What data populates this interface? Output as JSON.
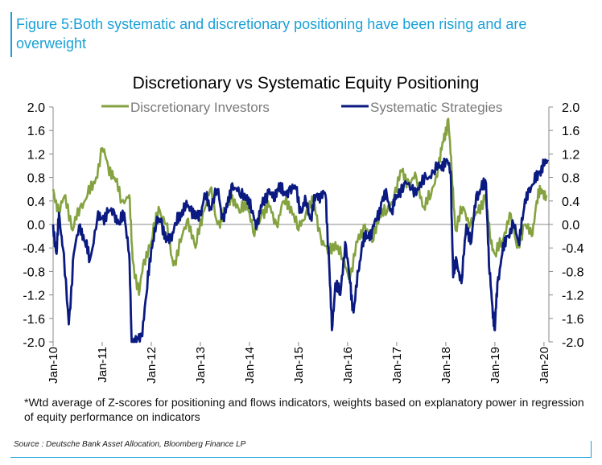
{
  "figure_title": "Figure 5:Both systematic and discretionary positioning have been rising and are overweight",
  "footnote": "*Wtd average of Z-scores for positioning and flows indicators, weights based on explanatory power in regression of equity performance on indicators",
  "source": "Source : Deutsche Bank Asset Allocation, Bloomberg Finance LP",
  "colors": {
    "accent": "#1aa0d8",
    "discretionary": "#84a340",
    "systematic": "#0a1a80"
  },
  "chart_data": {
    "type": "line",
    "title": "Discretionary  vs Systematic Equity Positioning",
    "xlabel": "",
    "ylabel": "",
    "ylim": [
      -2.0,
      2.0
    ],
    "yticks": [
      "2.0",
      "1.6",
      "1.2",
      "0.8",
      "0.4",
      "0.0",
      "-0.4",
      "-0.8",
      "-1.2",
      "-1.6",
      "-2.0"
    ],
    "right_yticks": [
      "2.0",
      "1.6",
      "1.2",
      "0.8",
      "0.4",
      "0.0",
      "-0.4",
      "-0.8",
      "-1.2",
      "-1.6",
      "-2.0"
    ],
    "x_tick_labels": [
      "Jan-10",
      "Jan-11",
      "Jan-12",
      "Jan-13",
      "Jan-14",
      "Jan-15",
      "Jan-16",
      "Jan-17",
      "Jan-18",
      "Jan-19",
      "Jan-20"
    ],
    "legend": [
      "Discretionary Investors",
      "Systematic Strategies"
    ],
    "legend_position": "top",
    "series": [
      {
        "name": "Discretionary Investors",
        "points": [
          [
            2010.0,
            0.6
          ],
          [
            2010.12,
            0.2
          ],
          [
            2010.25,
            0.5
          ],
          [
            2010.4,
            -0.1
          ],
          [
            2010.55,
            0.3
          ],
          [
            2010.7,
            0.5
          ],
          [
            2010.85,
            0.7
          ],
          [
            2011.0,
            1.3
          ],
          [
            2011.12,
            1.0
          ],
          [
            2011.25,
            0.8
          ],
          [
            2011.4,
            0.4
          ],
          [
            2011.55,
            0.5
          ],
          [
            2011.62,
            -0.6
          ],
          [
            2011.75,
            -1.2
          ],
          [
            2011.85,
            -0.6
          ],
          [
            2012.0,
            -0.3
          ],
          [
            2012.15,
            0.3
          ],
          [
            2012.3,
            0.0
          ],
          [
            2012.45,
            -0.7
          ],
          [
            2012.6,
            -0.3
          ],
          [
            2012.75,
            0.1
          ],
          [
            2012.9,
            -0.4
          ],
          [
            2013.05,
            0.2
          ],
          [
            2013.2,
            0.6
          ],
          [
            2013.35,
            0.0
          ],
          [
            2013.5,
            0.2
          ],
          [
            2013.65,
            0.5
          ],
          [
            2013.8,
            0.2
          ],
          [
            2013.95,
            0.4
          ],
          [
            2014.1,
            -0.2
          ],
          [
            2014.25,
            0.2
          ],
          [
            2014.4,
            0.3
          ],
          [
            2014.55,
            0.0
          ],
          [
            2014.7,
            0.4
          ],
          [
            2014.85,
            0.3
          ],
          [
            2015.0,
            -0.1
          ],
          [
            2015.15,
            0.2
          ],
          [
            2015.3,
            0.4
          ],
          [
            2015.45,
            -0.2
          ],
          [
            2015.6,
            -0.5
          ],
          [
            2015.75,
            -0.3
          ],
          [
            2015.9,
            -0.6
          ],
          [
            2016.05,
            -0.9
          ],
          [
            2016.2,
            -0.3
          ],
          [
            2016.35,
            0.0
          ],
          [
            2016.5,
            -0.3
          ],
          [
            2016.65,
            0.2
          ],
          [
            2016.8,
            0.2
          ],
          [
            2016.95,
            0.5
          ],
          [
            2017.1,
            0.9
          ],
          [
            2017.25,
            0.7
          ],
          [
            2017.4,
            0.8
          ],
          [
            2017.55,
            0.3
          ],
          [
            2017.7,
            0.5
          ],
          [
            2017.85,
            1.0
          ],
          [
            2017.95,
            1.4
          ],
          [
            2018.05,
            1.8
          ],
          [
            2018.12,
            0.9
          ],
          [
            2018.2,
            -0.1
          ],
          [
            2018.35,
            0.3
          ],
          [
            2018.5,
            0.0
          ],
          [
            2018.65,
            0.2
          ],
          [
            2018.8,
            0.5
          ],
          [
            2018.9,
            -0.2
          ],
          [
            2019.0,
            -0.5
          ],
          [
            2019.15,
            -0.3
          ],
          [
            2019.3,
            0.2
          ],
          [
            2019.45,
            -0.4
          ],
          [
            2019.6,
            0.0
          ],
          [
            2019.75,
            -0.2
          ],
          [
            2019.85,
            0.4
          ],
          [
            2019.95,
            0.6
          ],
          [
            2020.05,
            0.5
          ]
        ]
      },
      {
        "name": "Systematic Strategies",
        "points": [
          [
            2010.0,
            0.0
          ],
          [
            2010.07,
            -0.5
          ],
          [
            2010.12,
            0.2
          ],
          [
            2010.2,
            -0.4
          ],
          [
            2010.32,
            -1.7
          ],
          [
            2010.42,
            -0.5
          ],
          [
            2010.55,
            0.0
          ],
          [
            2010.65,
            -0.3
          ],
          [
            2010.75,
            -0.6
          ],
          [
            2010.9,
            0.1
          ],
          [
            2011.0,
            0.1
          ],
          [
            2011.12,
            0.2
          ],
          [
            2011.25,
            0.2
          ],
          [
            2011.35,
            0.0
          ],
          [
            2011.45,
            0.2
          ],
          [
            2011.55,
            -0.5
          ],
          [
            2011.6,
            -2.0
          ],
          [
            2011.7,
            -2.0
          ],
          [
            2011.8,
            -1.9
          ],
          [
            2011.9,
            -1.2
          ],
          [
            2012.0,
            -0.4
          ],
          [
            2012.1,
            0.0
          ],
          [
            2012.2,
            0.1
          ],
          [
            2012.3,
            -0.3
          ],
          [
            2012.4,
            -0.2
          ],
          [
            2012.5,
            0.0
          ],
          [
            2012.6,
            0.2
          ],
          [
            2012.7,
            0.3
          ],
          [
            2012.8,
            0.3
          ],
          [
            2012.9,
            0.1
          ],
          [
            2013.0,
            0.2
          ],
          [
            2013.1,
            0.5
          ],
          [
            2013.2,
            0.3
          ],
          [
            2013.35,
            0.6
          ],
          [
            2013.45,
            0.1
          ],
          [
            2013.55,
            0.3
          ],
          [
            2013.65,
            0.7
          ],
          [
            2013.8,
            0.5
          ],
          [
            2013.95,
            0.5
          ],
          [
            2014.05,
            0.2
          ],
          [
            2014.15,
            0.0
          ],
          [
            2014.25,
            0.3
          ],
          [
            2014.4,
            0.6
          ],
          [
            2014.5,
            0.4
          ],
          [
            2014.6,
            0.7
          ],
          [
            2014.7,
            0.5
          ],
          [
            2014.8,
            0.6
          ],
          [
            2014.95,
            0.6
          ],
          [
            2015.05,
            0.2
          ],
          [
            2015.15,
            0.4
          ],
          [
            2015.25,
            0.1
          ],
          [
            2015.35,
            0.5
          ],
          [
            2015.45,
            0.5
          ],
          [
            2015.55,
            0.5
          ],
          [
            2015.62,
            -0.6
          ],
          [
            2015.68,
            -1.8
          ],
          [
            2015.75,
            -1.0
          ],
          [
            2015.85,
            -1.2
          ],
          [
            2015.95,
            -0.3
          ],
          [
            2016.05,
            -1.0
          ],
          [
            2016.12,
            -1.5
          ],
          [
            2016.22,
            -0.8
          ],
          [
            2016.3,
            -0.3
          ],
          [
            2016.4,
            -0.2
          ],
          [
            2016.5,
            -0.1
          ],
          [
            2016.6,
            0.1
          ],
          [
            2016.7,
            0.4
          ],
          [
            2016.8,
            0.5
          ],
          [
            2016.9,
            0.2
          ],
          [
            2017.0,
            0.5
          ],
          [
            2017.15,
            0.7
          ],
          [
            2017.3,
            0.6
          ],
          [
            2017.45,
            0.6
          ],
          [
            2017.6,
            0.8
          ],
          [
            2017.75,
            0.9
          ],
          [
            2017.9,
            1.0
          ],
          [
            2018.0,
            1.1
          ],
          [
            2018.1,
            0.9
          ],
          [
            2018.15,
            -0.9
          ],
          [
            2018.22,
            -0.6
          ],
          [
            2018.32,
            -1.0
          ],
          [
            2018.42,
            0.0
          ],
          [
            2018.52,
            -0.3
          ],
          [
            2018.62,
            0.5
          ],
          [
            2018.72,
            0.6
          ],
          [
            2018.82,
            0.7
          ],
          [
            2018.88,
            -0.7
          ],
          [
            2018.95,
            -1.4
          ],
          [
            2019.0,
            -1.8
          ],
          [
            2019.05,
            -1.0
          ],
          [
            2019.15,
            -0.5
          ],
          [
            2019.25,
            -0.2
          ],
          [
            2019.38,
            0.0
          ],
          [
            2019.48,
            -0.3
          ],
          [
            2019.58,
            0.2
          ],
          [
            2019.68,
            0.6
          ],
          [
            2019.8,
            0.7
          ],
          [
            2019.9,
            0.9
          ],
          [
            2020.0,
            1.0
          ],
          [
            2020.08,
            1.1
          ]
        ]
      }
    ]
  }
}
